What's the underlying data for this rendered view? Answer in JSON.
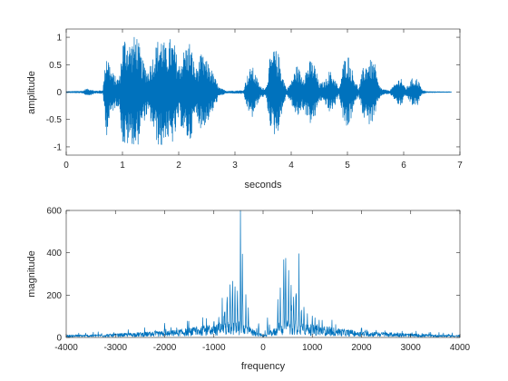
{
  "chart_data": [
    {
      "type": "line",
      "xlabel": "seconds",
      "ylabel": "amplitude",
      "xlim": [
        0,
        7
      ],
      "ylim": [
        -1.15,
        1.15
      ],
      "xticks": [
        0,
        1,
        2,
        3,
        4,
        5,
        6,
        7
      ],
      "yticks": [
        -1,
        -0.5,
        0,
        0.5,
        1
      ],
      "xtick_labels": [
        "0",
        "1",
        "2",
        "3",
        "4",
        "5",
        "6",
        "7"
      ],
      "ytick_labels": [
        "-1",
        "-0.5",
        "0",
        "0.5",
        "1"
      ],
      "grid": false,
      "color": "#0072BD",
      "series": [
        {
          "envelope": [
            [
              0.0,
              0.01
            ],
            [
              0.3,
              0.02
            ],
            [
              0.35,
              0.06
            ],
            [
              0.45,
              0.05
            ],
            [
              0.5,
              0.02
            ],
            [
              0.65,
              0.03
            ],
            [
              0.72,
              0.8
            ],
            [
              0.8,
              0.4
            ],
            [
              0.9,
              0.25
            ],
            [
              0.95,
              0.3
            ],
            [
              1.0,
              0.95
            ],
            [
              1.05,
              1.05
            ],
            [
              1.15,
              0.9
            ],
            [
              1.25,
              1.1
            ],
            [
              1.35,
              0.6
            ],
            [
              1.45,
              0.4
            ],
            [
              1.55,
              0.7
            ],
            [
              1.62,
              0.95
            ],
            [
              1.7,
              1.05
            ],
            [
              1.78,
              0.8
            ],
            [
              1.85,
              1.0
            ],
            [
              1.92,
              0.9
            ],
            [
              2.0,
              0.5
            ],
            [
              2.1,
              0.8
            ],
            [
              2.2,
              0.95
            ],
            [
              2.3,
              0.4
            ],
            [
              2.4,
              0.7
            ],
            [
              2.55,
              0.5
            ],
            [
              2.65,
              0.25
            ],
            [
              2.72,
              0.08
            ],
            [
              2.85,
              0.02
            ],
            [
              3.15,
              0.03
            ],
            [
              3.2,
              0.25
            ],
            [
              3.3,
              0.5
            ],
            [
              3.45,
              0.1
            ],
            [
              3.55,
              0.08
            ],
            [
              3.62,
              0.6
            ],
            [
              3.7,
              0.8
            ],
            [
              3.78,
              0.7
            ],
            [
              3.85,
              0.3
            ],
            [
              3.92,
              0.05
            ],
            [
              4.0,
              0.2
            ],
            [
              4.1,
              0.5
            ],
            [
              4.2,
              0.3
            ],
            [
              4.35,
              0.6
            ],
            [
              4.42,
              0.5
            ],
            [
              4.5,
              0.15
            ],
            [
              4.6,
              0.2
            ],
            [
              4.68,
              0.4
            ],
            [
              4.78,
              0.25
            ],
            [
              4.85,
              0.05
            ],
            [
              4.93,
              0.55
            ],
            [
              5.0,
              0.75
            ],
            [
              5.1,
              0.35
            ],
            [
              5.2,
              0.05
            ],
            [
              5.28,
              0.45
            ],
            [
              5.38,
              0.6
            ],
            [
              5.48,
              0.55
            ],
            [
              5.55,
              0.15
            ],
            [
              5.62,
              0.05
            ],
            [
              5.75,
              0.03
            ],
            [
              5.85,
              0.15
            ],
            [
              5.95,
              0.3
            ],
            [
              6.0,
              0.12
            ],
            [
              6.05,
              0.08
            ],
            [
              6.15,
              0.25
            ],
            [
              6.25,
              0.25
            ],
            [
              6.32,
              0.05
            ],
            [
              6.4,
              0.01
            ],
            [
              6.85,
              0.005
            ]
          ]
        }
      ]
    },
    {
      "type": "line",
      "xlabel": "frequency",
      "ylabel": "magnitude",
      "xlim": [
        -4000,
        4000
      ],
      "ylim": [
        0,
        600
      ],
      "xticks": [
        -4000,
        -3000,
        -2000,
        -1000,
        0,
        1000,
        2000,
        3000,
        4000
      ],
      "yticks": [
        0,
        200,
        400,
        600
      ],
      "xtick_labels": [
        "-4000",
        "-3000",
        "-2000",
        "-1000",
        "0",
        "1000",
        "2000",
        "3000",
        "4000"
      ],
      "ytick_labels": [
        "0",
        "200",
        "400",
        "600"
      ],
      "grid": false,
      "color": "#0072BD",
      "series": [
        {
          "symmetric": true,
          "baseline": [
            [
              0,
              10
            ],
            [
              200,
              40
            ],
            [
              500,
              80
            ],
            [
              800,
              70
            ],
            [
              1000,
              60
            ],
            [
              1200,
              55
            ],
            [
              1500,
              45
            ],
            [
              1800,
              35
            ],
            [
              2000,
              30
            ],
            [
              2500,
              25
            ],
            [
              3000,
              18
            ],
            [
              3500,
              14
            ],
            [
              4000,
              12
            ]
          ],
          "peaks": [
            [
              40,
              20
            ],
            [
              90,
              100
            ],
            [
              130,
              60
            ],
            [
              300,
              190
            ],
            [
              350,
              240
            ],
            [
              420,
              420
            ],
            [
              460,
              540
            ],
            [
              520,
              330
            ],
            [
              570,
              320
            ],
            [
              620,
              300
            ],
            [
              670,
              310
            ],
            [
              730,
              260
            ],
            [
              780,
              200
            ],
            [
              830,
              160
            ],
            [
              900,
              130
            ],
            [
              1000,
              120
            ],
            [
              1100,
              70
            ],
            [
              1200,
              90
            ],
            [
              1350,
              60
            ],
            [
              1500,
              45
            ],
            [
              1800,
              35
            ],
            [
              2000,
              70
            ],
            [
              2300,
              40
            ]
          ]
        }
      ]
    }
  ]
}
